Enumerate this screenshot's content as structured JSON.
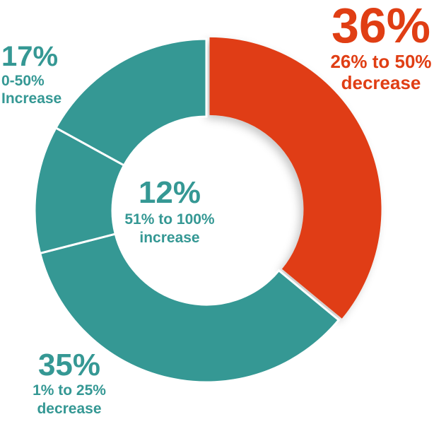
{
  "chart_data": {
    "type": "pie",
    "donut": true,
    "title": "",
    "colors": {
      "teal": "#359894",
      "orange": "#e03e14",
      "separator": "#ffffff"
    },
    "slices": [
      {
        "value": 36,
        "pct_label": "36%",
        "desc_label": "26% to 50% decrease",
        "color": "#e03e14"
      },
      {
        "value": 35,
        "pct_label": "35%",
        "desc_label": "1% to 25% decrease",
        "color": "#359894"
      },
      {
        "value": 12,
        "pct_label": "12%",
        "desc_label": "51% to 100% increase",
        "color": "#359894"
      },
      {
        "value": 17,
        "pct_label": "17%",
        "desc_label": "0-50% Increase",
        "color": "#359894"
      }
    ]
  },
  "labels": {
    "s36": {
      "pct": "36%",
      "line1": "26% to 50%",
      "line2": "decrease"
    },
    "s35": {
      "pct": "35%",
      "line1": "1% to 25%",
      "line2": "decrease"
    },
    "s12": {
      "pct": "12%",
      "line1": "51% to 100%",
      "line2": "increase"
    },
    "s17": {
      "pct": "17%",
      "line1": "0-50%",
      "line2": "Increase"
    }
  }
}
